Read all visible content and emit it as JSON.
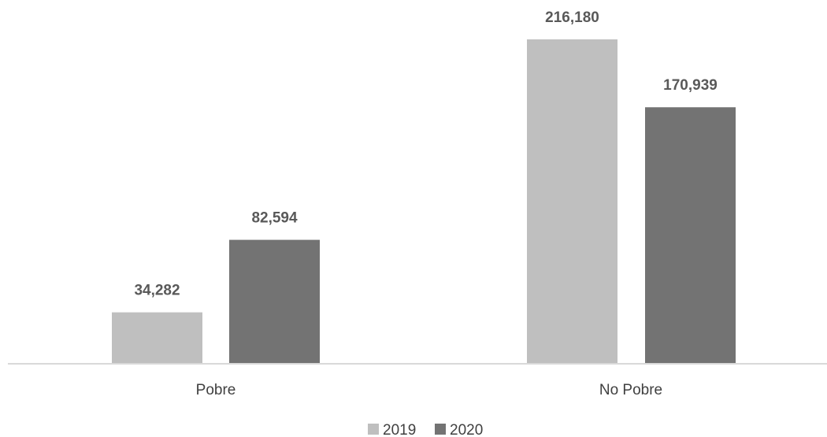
{
  "chart_data": {
    "type": "bar",
    "title": "",
    "xlabel": "",
    "ylabel": "",
    "categories": [
      "Pobre",
      "No Pobre"
    ],
    "series": [
      {
        "name": "2019",
        "values": [
          34282,
          216180
        ],
        "labels": [
          "34,282",
          "216,180"
        ],
        "color": "#bfbfbf"
      },
      {
        "name": "2020",
        "values": [
          82594,
          170939
        ],
        "labels": [
          "82,594",
          "170,939"
        ],
        "color": "#737373"
      }
    ],
    "ylim": [
      0,
      216180
    ],
    "grid": false,
    "legend": "bottom-center"
  }
}
